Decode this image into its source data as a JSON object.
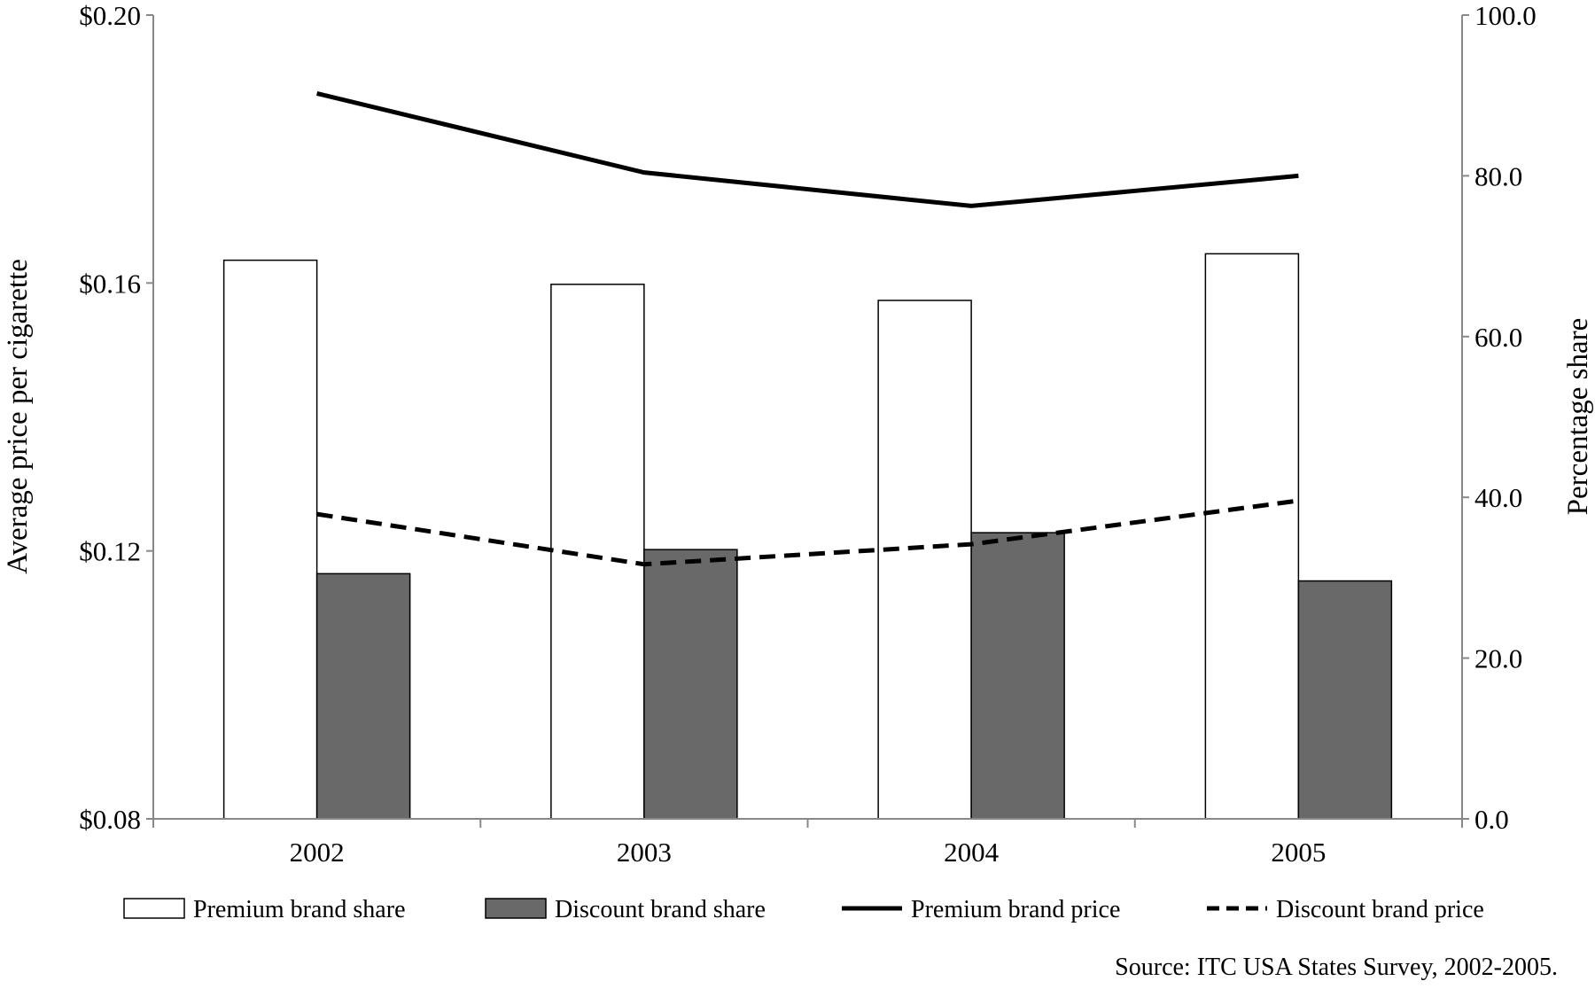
{
  "chart_data": {
    "type": "bar",
    "categories": [
      "2002",
      "2003",
      "2004",
      "2005"
    ],
    "series": [
      {
        "name": "Premium brand share",
        "kind": "bar",
        "axis": "right",
        "color": "#ffffff",
        "values": [
          69.5,
          66.5,
          64.5,
          70.3
        ]
      },
      {
        "name": "Discount brand share",
        "kind": "bar",
        "axis": "right",
        "color": "#696969",
        "values": [
          30.5,
          33.5,
          35.6,
          29.6
        ]
      },
      {
        "name": "Premium brand price",
        "kind": "line",
        "style": "solid",
        "axis": "left",
        "color": "#000000",
        "values": [
          0.1883,
          0.1765,
          0.1715,
          0.176
        ]
      },
      {
        "name": "Discount brand price",
        "kind": "line",
        "style": "dashed",
        "axis": "left",
        "color": "#000000",
        "values": [
          0.1255,
          0.118,
          0.121,
          0.1275
        ]
      }
    ],
    "ylabel": "Average price per cigarette",
    "ylabel_right": "Percentage share",
    "ylim": [
      0.08,
      0.2
    ],
    "ylim_right": [
      0,
      100
    ],
    "yticks": [
      "$0.08",
      "$0.12",
      "$0.16",
      "$0.20"
    ],
    "yticks_right": [
      "0.0",
      "20.0",
      "40.0",
      "60.0",
      "80.0",
      "100.0"
    ],
    "legend": "bottom",
    "grid": false
  },
  "source_note": "Source: ITC USA States Survey, 2002-2005."
}
